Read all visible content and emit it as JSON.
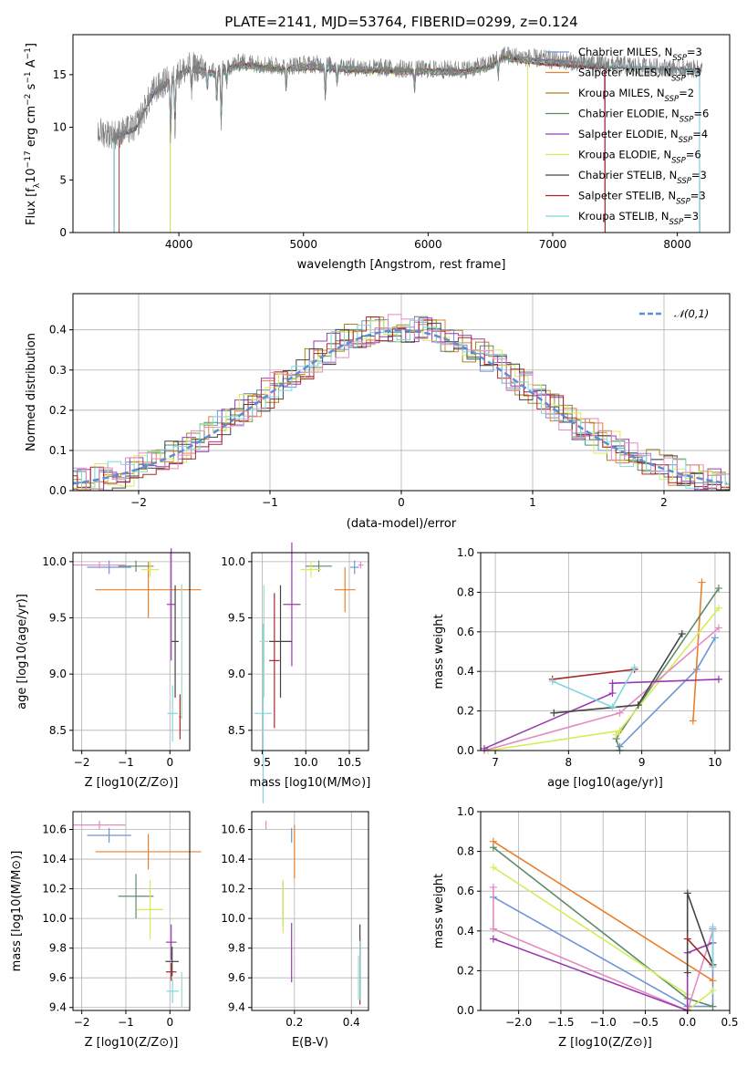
{
  "chart_data": [
    {
      "type": "line",
      "title": "PLATE=2141, MJD=53764, FIBERID=0299, z=0.124",
      "xlabel": "wavelength [Angstrom, rest frame]",
      "ylabel_parts": [
        "Flux [f",
        "λ",
        "10",
        "−17",
        " erg cm",
        "−2",
        " s",
        "−1",
        " A",
        "−1",
        "]"
      ],
      "xlim": [
        3150,
        8420
      ],
      "ylim": [
        0,
        18.8
      ],
      "xticks": [
        "4000",
        "5000",
        "6000",
        "7000",
        "8000"
      ],
      "yticks": [
        "0",
        "5",
        "10",
        "15"
      ],
      "grid": false,
      "legend_position": "upper right",
      "series": [
        {
          "name": "Chabrier MILES, N",
          "sub": "SSP",
          "suffix": "=3",
          "color": "#6f95d8"
        },
        {
          "name": "Salpeter MILES, N",
          "sub": "SSP",
          "suffix": "=3",
          "color": "#e87f2c"
        },
        {
          "name": "Kroupa MILES, N",
          "sub": "SSP",
          "suffix": "=2",
          "color": "#a8841e"
        },
        {
          "name": "Chabrier ELODIE, N",
          "sub": "SSP",
          "suffix": "=6",
          "color": "#5e8b66"
        },
        {
          "name": "Salpeter ELODIE, N",
          "sub": "SSP",
          "suffix": "=4",
          "color": "#9a3bb0"
        },
        {
          "name": "Kroupa ELODIE, N",
          "sub": "SSP",
          "suffix": "=6",
          "color": "#d5ec5a"
        },
        {
          "name": "Chabrier STELIB, N",
          "sub": "SSP",
          "suffix": "=3",
          "color": "#444444"
        },
        {
          "name": "Salpeter STELIB, N",
          "sub": "SSP",
          "suffix": "=3",
          "color": "#a82828"
        },
        {
          "name": "Kroupa STELIB, N",
          "sub": "SSP",
          "suffix": "=3",
          "color": "#7fd7e0"
        }
      ],
      "data_color": "#7f7f7f",
      "spectrum_anchors": {
        "x": [
          3350,
          3500,
          3650,
          3800,
          3950,
          4100,
          4300,
          4500,
          4800,
          5100,
          5400,
          5700,
          6000,
          6300,
          6500,
          6600,
          6800,
          7100,
          7400,
          7700,
          8000,
          8200
        ],
        "y": [
          9.6,
          9.3,
          10.0,
          13.5,
          14.8,
          15.8,
          15.3,
          16.2,
          15.8,
          16.0,
          15.7,
          15.6,
          15.5,
          15.5,
          16.0,
          16.9,
          16.6,
          16.3,
          16.0,
          15.8,
          15.6,
          15.5
        ]
      },
      "absorption_features": {
        "center": [
          3934,
          3969,
          4102,
          4227,
          4304,
          4340,
          4384,
          4861,
          5175,
          5270,
          5892,
          6563
        ],
        "depth": [
          6.0,
          5.0,
          2.5,
          2.0,
          3.0,
          5.5,
          1.5,
          2.2,
          3.0,
          1.5,
          2.0,
          1.5
        ]
      },
      "model_cutoffs": {
        "blue_start": [
          3480,
          3480,
          3930,
          3480,
          3480,
          3930,
          3480,
          3520,
          3480
        ],
        "red_end": [
          8180,
          7420,
          7420,
          7420,
          7420,
          6800,
          8180,
          7420,
          8180
        ]
      }
    },
    {
      "type": "histogram",
      "xlabel": "(data-model)/error",
      "ylabel": "Normed distribution",
      "xlim": [
        -2.5,
        2.5
      ],
      "ylim": [
        0,
        0.49
      ],
      "xticks": [
        "−2",
        "−1",
        "0",
        "1",
        "2"
      ],
      "yticks": [
        "0.0",
        "0.1",
        "0.2",
        "0.3",
        "0.4"
      ],
      "grid": true,
      "legend_position": "upper right",
      "reference": {
        "name": "𝒩(0,1)",
        "color": "#5b8ed6",
        "style": "dashed"
      },
      "bin_edges_step": 0.1,
      "series_colors": [
        "#6f95d8",
        "#e87f2c",
        "#a8841e",
        "#5e8b66",
        "#9a3bb0",
        "#d5ec5a",
        "#444444",
        "#a82828",
        "#7fd7e0",
        "#e68ac3"
      ]
    },
    {
      "type": "scatter",
      "xlabel": "Z [log10(Z/Z⊙)]",
      "ylabel": "age  [log10(age/yr)]",
      "xlim": [
        -2.2,
        0.45
      ],
      "ylim": [
        8.32,
        10.08
      ],
      "xticks": [
        "−2",
        "−1",
        "0"
      ],
      "yticks": [
        "8.5",
        "9.0",
        "9.5",
        "10.0"
      ],
      "grid": true,
      "points": [
        {
          "color": "#6f95d8",
          "x": -1.38,
          "y": 9.95,
          "xerr": 0.5,
          "yerr": 0.06
        },
        {
          "color": "#e87f2c",
          "x": -0.49,
          "y": 9.75,
          "xerr": 1.2,
          "yerr": 0.25
        },
        {
          "color": "#5e8b66",
          "x": -0.77,
          "y": 9.96,
          "xerr": 0.4,
          "yerr": 0.05
        },
        {
          "color": "#d5ec5a",
          "x": -0.45,
          "y": 9.93,
          "xerr": 0.2,
          "yerr": 0.07
        },
        {
          "color": "#e68ac3",
          "x": -1.6,
          "y": 9.97,
          "xerr": 0.6,
          "yerr": 0.03
        },
        {
          "color": "#9a3bb0",
          "x": 0.03,
          "y": 9.62,
          "xerr": 0.1,
          "yerr": 0.5
        },
        {
          "color": "#444444",
          "x": 0.12,
          "y": 9.29,
          "xerr": 0.08,
          "yerr": 0.5
        },
        {
          "color": "#a82828",
          "x": 0.23,
          "y": 8.62,
          "xerr": 0.02,
          "yerr": 0.2
        },
        {
          "color": "#7fd7e0",
          "x": 0.06,
          "y": 8.65,
          "xerr": 0.12,
          "yerr": 0.25
        },
        {
          "color": "#a8d8c0",
          "x": 0.27,
          "y": 9.2,
          "xerr": 0.02,
          "yerr": 0.6
        }
      ]
    },
    {
      "type": "scatter",
      "xlabel": "mass [log10(M/M⊙)]",
      "ylabel": "",
      "xlim": [
        9.38,
        10.72
      ],
      "ylim": [
        8.32,
        10.08
      ],
      "xticks": [
        "9.5",
        "10.0",
        "10.5"
      ],
      "yticks": [
        "8.5",
        "9.0",
        "9.5",
        "10.0"
      ],
      "grid": true,
      "points": [
        {
          "color": "#6f95d8",
          "x": 10.56,
          "y": 9.95,
          "xerr": 0.05,
          "yerr": 0.06
        },
        {
          "color": "#e87f2c",
          "x": 10.45,
          "y": 9.75,
          "xerr": 0.12,
          "yerr": 0.2
        },
        {
          "color": "#5e8b66",
          "x": 10.15,
          "y": 9.96,
          "xerr": 0.15,
          "yerr": 0.05
        },
        {
          "color": "#d5ec5a",
          "x": 10.06,
          "y": 9.93,
          "xerr": 0.12,
          "yerr": 0.07
        },
        {
          "color": "#e68ac3",
          "x": 10.63,
          "y": 9.97,
          "xerr": 0.03,
          "yerr": 0.03
        },
        {
          "color": "#9a3bb0",
          "x": 9.84,
          "y": 9.62,
          "xerr": 0.1,
          "yerr": 0.55
        },
        {
          "color": "#444444",
          "x": 9.71,
          "y": 9.29,
          "xerr": 0.13,
          "yerr": 0.5
        },
        {
          "color": "#a82828",
          "x": 9.64,
          "y": 9.12,
          "xerr": 0.06,
          "yerr": 0.6
        },
        {
          "color": "#7fd7e0",
          "x": 9.51,
          "y": 8.65,
          "xerr": 0.1,
          "yerr": 0.8
        },
        {
          "color": "#a8d8c0",
          "x": 9.52,
          "y": 9.29,
          "xerr": 0.05,
          "yerr": 0.5
        }
      ]
    },
    {
      "type": "line",
      "xlabel": "age  [log10(age/yr)]",
      "ylabel": "mass weight",
      "xlim": [
        6.8,
        10.2
      ],
      "ylim": [
        0,
        1.0
      ],
      "xticks": [
        "7",
        "8",
        "9",
        "10"
      ],
      "yticks": [
        "0.0",
        "0.2",
        "0.4",
        "0.6",
        "0.8",
        "1.0"
      ],
      "grid": true,
      "series": [
        {
          "color": "#6f95d8",
          "x": [
            8.7,
            9.75,
            10.0
          ],
          "y": [
            0.02,
            0.41,
            0.57
          ]
        },
        {
          "color": "#e87f2c",
          "x": [
            9.7,
            9.82
          ],
          "y": [
            0.15,
            0.85
          ]
        },
        {
          "color": "#5e8b66",
          "x": [
            8.7,
            8.65,
            10.05
          ],
          "y": [
            0.0,
            0.06,
            0.82
          ]
        },
        {
          "color": "#d5ec5a",
          "x": [
            6.9,
            8.7,
            8.65,
            10.05
          ],
          "y": [
            0.0,
            0.1,
            0.08,
            0.72
          ]
        },
        {
          "color": "#e68ac3",
          "x": [
            6.85,
            8.7,
            10.05
          ],
          "y": [
            0.0,
            0.19,
            0.62
          ]
        },
        {
          "color": "#9a3bb0",
          "x": [
            6.85,
            8.6,
            8.6,
            10.05
          ],
          "y": [
            0.01,
            0.29,
            0.34,
            0.36
          ]
        },
        {
          "color": "#444444",
          "x": [
            7.8,
            8.95,
            9.55
          ],
          "y": [
            0.19,
            0.23,
            0.59
          ]
        },
        {
          "color": "#a82828",
          "x": [
            7.78,
            8.9
          ],
          "y": [
            0.36,
            0.41
          ]
        },
        {
          "color": "#7fd7e0",
          "x": [
            7.78,
            8.6,
            8.9
          ],
          "y": [
            0.35,
            0.22,
            0.42
          ]
        }
      ]
    },
    {
      "type": "scatter",
      "xlabel": "Z [log10(Z/Z⊙)]",
      "ylabel": "mass [log10(M/M⊙)]",
      "xlim": [
        -2.2,
        0.45
      ],
      "ylim": [
        9.38,
        10.72
      ],
      "xticks": [
        "−2",
        "−1",
        "0"
      ],
      "yticks": [
        "9.4",
        "9.6",
        "9.8",
        "10.0",
        "10.2",
        "10.4",
        "10.6"
      ],
      "grid": true,
      "points": [
        {
          "color": "#6f95d8",
          "x": -1.38,
          "y": 10.56,
          "xerr": 0.5,
          "yerr": 0.05
        },
        {
          "color": "#e87f2c",
          "x": -0.49,
          "y": 10.45,
          "xerr": 1.2,
          "yerr": 0.12
        },
        {
          "color": "#5e8b66",
          "x": -0.77,
          "y": 10.15,
          "xerr": 0.4,
          "yerr": 0.15
        },
        {
          "color": "#d5ec5a",
          "x": -0.45,
          "y": 10.06,
          "xerr": 0.3,
          "yerr": 0.2
        },
        {
          "color": "#e68ac3",
          "x": -1.6,
          "y": 10.63,
          "xerr": 0.6,
          "yerr": 0.03
        },
        {
          "color": "#9a3bb0",
          "x": 0.03,
          "y": 9.84,
          "xerr": 0.12,
          "yerr": 0.12
        },
        {
          "color": "#444444",
          "x": 0.05,
          "y": 9.71,
          "xerr": 0.15,
          "yerr": 0.1
        },
        {
          "color": "#a82828",
          "x": 0.03,
          "y": 9.64,
          "xerr": 0.12,
          "yerr": 0.06
        },
        {
          "color": "#7fd7e0",
          "x": 0.06,
          "y": 9.51,
          "xerr": 0.14,
          "yerr": 0.08
        },
        {
          "color": "#a8d8c0",
          "x": 0.27,
          "y": 9.52,
          "xerr": 0.02,
          "yerr": 0.12
        }
      ]
    },
    {
      "type": "scatter",
      "xlabel": "E(B-V)",
      "ylabel": "",
      "xlim": [
        0.05,
        0.46
      ],
      "ylim": [
        9.38,
        10.72
      ],
      "xticks": [
        "0.2",
        "0.4"
      ],
      "yticks": [
        "9.4",
        "9.6",
        "9.8",
        "10.0",
        "10.2",
        "10.4",
        "10.6"
      ],
      "grid": true,
      "points": [
        {
          "color": "#6f95d8",
          "x": 0.19,
          "y": 10.56,
          "xerr": 0,
          "yerr": 0.05
        },
        {
          "color": "#e87f2c",
          "x": 0.2,
          "y": 10.45,
          "xerr": 0,
          "yerr": 0.18
        },
        {
          "color": "#5e8b66",
          "x": 0.16,
          "y": 10.1,
          "xerr": 0,
          "yerr": 0.15
        },
        {
          "color": "#d5ec5a",
          "x": 0.16,
          "y": 10.08,
          "xerr": 0,
          "yerr": 0.18
        },
        {
          "color": "#e68ac3",
          "x": 0.1,
          "y": 10.63,
          "xerr": 0,
          "yerr": 0.03
        },
        {
          "color": "#9a3bb0",
          "x": 0.19,
          "y": 9.77,
          "xerr": 0,
          "yerr": 0.2
        },
        {
          "color": "#444444",
          "x": 0.43,
          "y": 9.71,
          "xerr": 0,
          "yerr": 0.25
        },
        {
          "color": "#a82828",
          "x": 0.43,
          "y": 9.64,
          "xerr": 0,
          "yerr": 0.22
        },
        {
          "color": "#7fd7e0",
          "x": 0.43,
          "y": 9.65,
          "xerr": 0,
          "yerr": 0.2
        },
        {
          "color": "#a8d8c0",
          "x": 0.425,
          "y": 9.6,
          "xerr": 0,
          "yerr": 0.15
        }
      ]
    },
    {
      "type": "line",
      "xlabel": "Z [log10(Z/Z⊙)]",
      "ylabel": "mass weight",
      "xlim": [
        -2.45,
        0.5
      ],
      "ylim": [
        0,
        1.0
      ],
      "xticks": [
        "−2.0",
        "−1.5",
        "−1.0",
        "−0.5",
        "0.0",
        "0.5"
      ],
      "yticks": [
        "0.0",
        "0.2",
        "0.4",
        "0.6",
        "0.8",
        "1.0"
      ],
      "grid": true,
      "series": [
        {
          "color": "#6f95d8",
          "x": [
            -2.3,
            0.0,
            0.3,
            0.3
          ],
          "y": [
            0.57,
            0.02,
            0.02,
            0.41
          ]
        },
        {
          "color": "#e87f2c",
          "x": [
            -2.3,
            0.3
          ],
          "y": [
            0.85,
            0.15
          ]
        },
        {
          "color": "#5e8b66",
          "x": [
            -2.3,
            0.0,
            0.3
          ],
          "y": [
            0.82,
            0.06,
            0.02
          ]
        },
        {
          "color": "#d5ec5a",
          "x": [
            -2.3,
            0.0,
            0.0,
            0.3
          ],
          "y": [
            0.72,
            0.08,
            0.0,
            0.1
          ]
        },
        {
          "color": "#e68ac3",
          "x": [
            -2.3,
            -2.3,
            0.0,
            0.3
          ],
          "y": [
            0.62,
            0.41,
            0.0,
            0.4
          ]
        },
        {
          "color": "#9a3bb0",
          "x": [
            -2.3,
            0.0,
            0.0,
            0.3
          ],
          "y": [
            0.36,
            0.0,
            0.29,
            0.34
          ]
        },
        {
          "color": "#444444",
          "x": [
            0.0,
            0.0,
            0.3
          ],
          "y": [
            0.19,
            0.59,
            0.23
          ]
        },
        {
          "color": "#a82828",
          "x": [
            0.0,
            0.3
          ],
          "y": [
            0.36,
            0.22
          ]
        },
        {
          "color": "#7fd7e0",
          "x": [
            0.3,
            0.3
          ],
          "y": [
            0.22,
            0.42
          ]
        }
      ]
    }
  ]
}
